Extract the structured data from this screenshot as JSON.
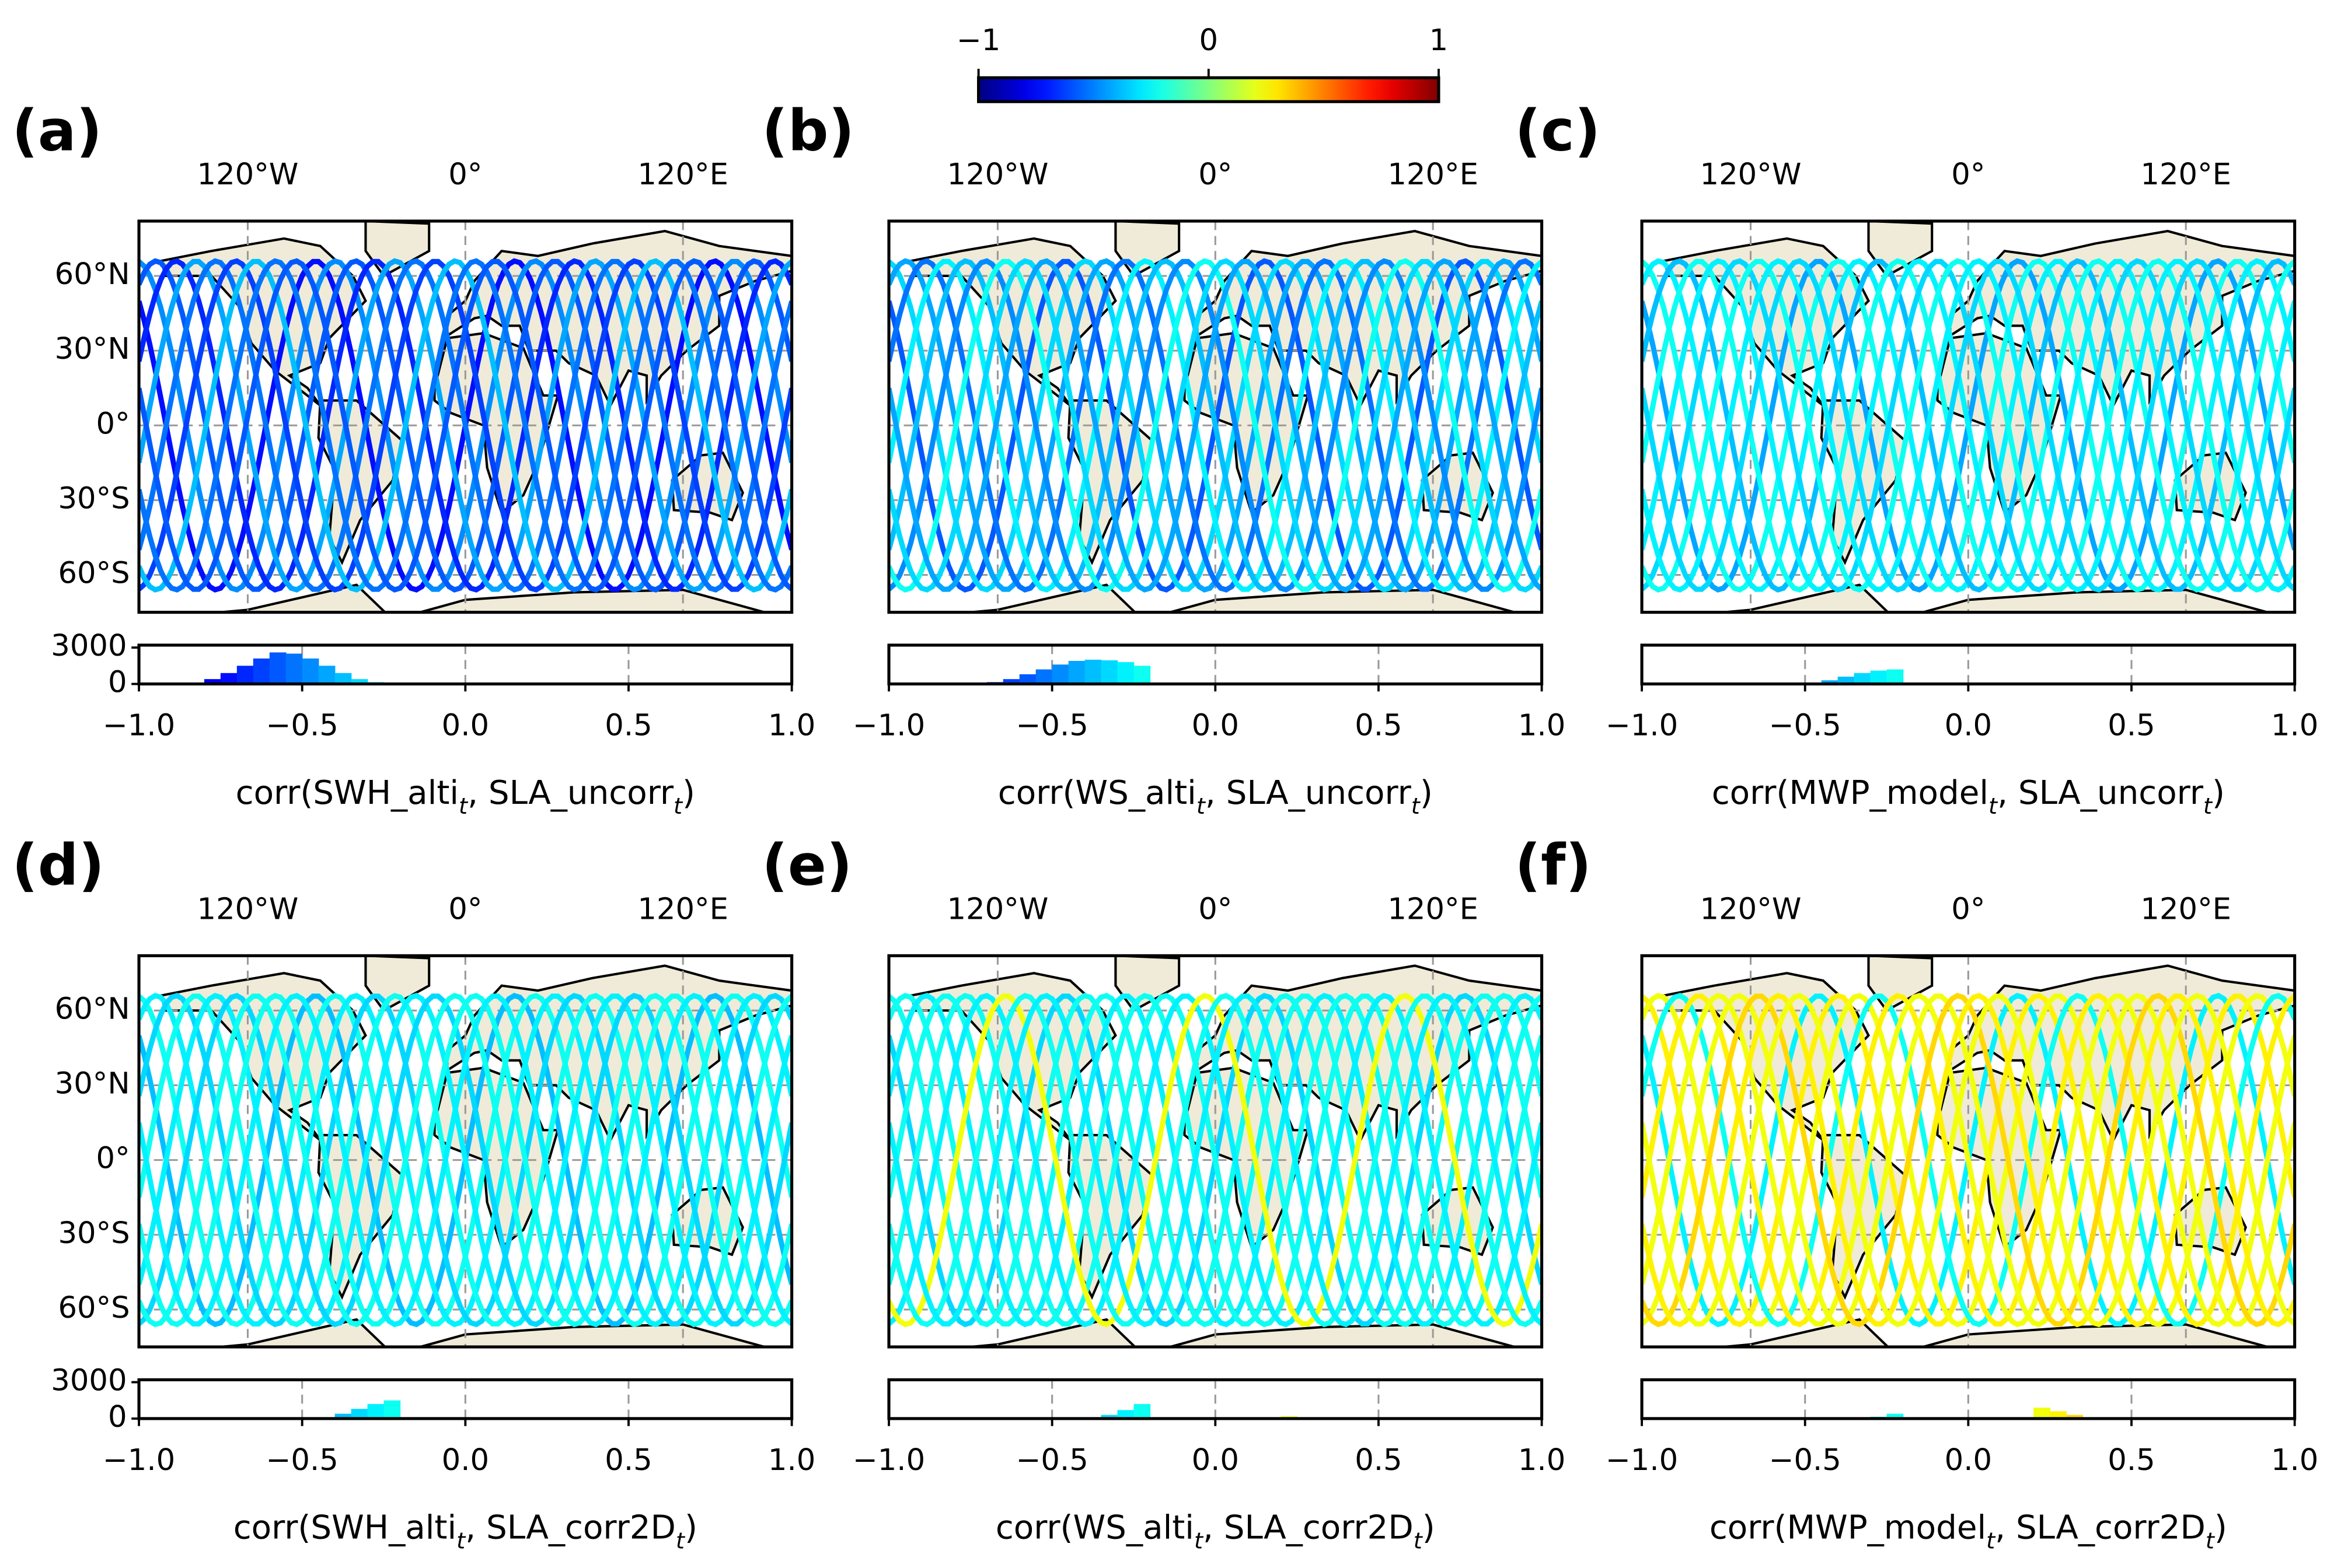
{
  "colorbar": {
    "lim": [
      -1,
      1
    ],
    "ticks": [
      {
        "value": -1,
        "label": "−1"
      },
      0,
      1
    ]
  },
  "chart_data": [
    {
      "type": "histogram",
      "label": "(a)",
      "map": {
        "xlim": [
          -180,
          180
        ],
        "ylim": [
          -75,
          82
        ],
        "xticks": [
          {
            "value": -120,
            "label": "120°W"
          },
          {
            "value": 0,
            "label": "0°"
          },
          {
            "value": 120,
            "label": "120°E"
          }
        ],
        "yticks": [
          {
            "value": 60,
            "label": "60°N"
          },
          {
            "value": 30,
            "label": "30°N"
          },
          {
            "value": 0,
            "label": "0°"
          },
          {
            "value": -30,
            "label": "30°S"
          },
          {
            "value": -60,
            "label": "60°S"
          }
        ]
      },
      "xlim": [
        -1,
        1
      ],
      "ylim": [
        0,
        3200
      ],
      "xticks": [
        {
          "value": -1,
          "label": "−1.0"
        },
        {
          "value": -0.5,
          "label": "−0.5"
        },
        {
          "value": 0,
          "label": "0.0"
        },
        {
          "value": 0.5,
          "label": "0.5"
        },
        {
          "value": 1,
          "label": "1.0"
        }
      ],
      "yticks": [
        3000,
        0
      ],
      "bins": [
        -1,
        -0.95,
        -0.9,
        -0.85,
        -0.8,
        -0.75,
        -0.7,
        -0.65,
        -0.6,
        -0.55,
        -0.5,
        -0.45,
        -0.4,
        -0.35,
        -0.3,
        -0.25,
        -0.2,
        -0.15,
        -0.1,
        -0.05,
        0,
        0.05,
        0.1,
        0.15,
        0.2,
        0.25,
        0.3,
        0.35,
        0.4,
        0.45,
        0.5,
        0.55,
        0.6,
        0.65,
        0.7,
        0.75,
        0.8,
        0.85,
        0.9,
        0.95,
        1
      ],
      "counts": [
        0,
        0,
        0,
        100,
        400,
        900,
        1500,
        2100,
        2600,
        2500,
        2100,
        1500,
        900,
        400,
        150,
        50,
        0,
        0,
        0,
        0,
        0,
        0,
        0,
        0,
        0,
        0,
        0,
        0,
        0,
        0,
        0,
        0,
        0,
        0,
        0,
        0,
        0,
        0,
        0,
        0
      ],
      "xlabel": [
        "corr(SWH_alti",
        "t",
        ", SLA_uncorr",
        "t",
        ")"
      ]
    },
    {
      "type": "histogram",
      "label": "(b)",
      "map": {
        "xlim": [
          -180,
          180
        ],
        "ylim": [
          -75,
          82
        ],
        "xticks": [
          {
            "value": -120,
            "label": "120°W"
          },
          {
            "value": 0,
            "label": "0°"
          },
          {
            "value": 120,
            "label": "120°E"
          }
        ],
        "yticks": [
          60,
          30,
          0,
          -30,
          -60
        ]
      },
      "xlim": [
        -1,
        1
      ],
      "ylim": [
        0,
        3200
      ],
      "xticks": [
        {
          "value": -1,
          "label": "−1.0"
        },
        {
          "value": -0.5,
          "label": "−0.5"
        },
        {
          "value": 0,
          "label": "0.0"
        },
        {
          "value": 0.5,
          "label": "0.5"
        },
        {
          "value": 1,
          "label": "1.0"
        }
      ],
      "yticks": [],
      "bins": [
        -1,
        -0.95,
        -0.9,
        -0.85,
        -0.8,
        -0.75,
        -0.7,
        -0.65,
        -0.6,
        -0.55,
        -0.5,
        -0.45,
        -0.4,
        -0.35,
        -0.3,
        -0.25,
        -0.2,
        -0.15,
        -0.1,
        -0.05,
        0,
        0.05,
        0.1,
        0.15,
        0.2,
        0.25,
        0.3,
        0.35,
        0.4,
        0.45,
        0.5,
        0.55,
        0.6,
        0.65,
        0.7,
        0.75,
        0.8,
        0.85,
        0.9,
        0.95,
        1
      ],
      "counts": [
        0,
        0,
        0,
        0,
        0,
        50,
        150,
        400,
        800,
        1200,
        1600,
        1900,
        2000,
        1950,
        1800,
        1500,
        0,
        0,
        0,
        0,
        0,
        0,
        0,
        0,
        0,
        0,
        0,
        0,
        0,
        0,
        0,
        0,
        0,
        0,
        0,
        0,
        0,
        0,
        0,
        0
      ],
      "xlabel": [
        "corr(WS_alti",
        "t",
        ", SLA_uncorr",
        "t",
        ")"
      ]
    },
    {
      "type": "histogram",
      "label": "(c)",
      "map": {
        "xlim": [
          -180,
          180
        ],
        "ylim": [
          -75,
          82
        ],
        "xticks": [
          {
            "value": -120,
            "label": "120°W"
          },
          {
            "value": 0,
            "label": "0°"
          },
          {
            "value": 120,
            "label": "120°E"
          }
        ],
        "yticks": [
          60,
          30,
          0,
          -30,
          -60
        ]
      },
      "xlim": [
        -1,
        1
      ],
      "ylim": [
        0,
        3200
      ],
      "xticks": [
        {
          "value": -1,
          "label": "−1.0"
        },
        {
          "value": -0.5,
          "label": "−0.5"
        },
        {
          "value": 0,
          "label": "0.0"
        },
        {
          "value": 0.5,
          "label": "0.5"
        },
        {
          "value": 1,
          "label": "1.0"
        }
      ],
      "yticks": [],
      "bins": [
        -1,
        -0.95,
        -0.9,
        -0.85,
        -0.8,
        -0.75,
        -0.7,
        -0.65,
        -0.6,
        -0.55,
        -0.5,
        -0.45,
        -0.4,
        -0.35,
        -0.3,
        -0.25,
        -0.2,
        -0.15,
        -0.1,
        -0.05,
        0,
        0.05,
        0.1,
        0.15,
        0.2,
        0.25,
        0.3,
        0.35,
        0.4,
        0.45,
        0.5,
        0.55,
        0.6,
        0.65,
        0.7,
        0.75,
        0.8,
        0.85,
        0.9,
        0.95,
        1
      ],
      "counts": [
        0,
        0,
        0,
        0,
        0,
        0,
        0,
        0,
        0,
        0,
        100,
        300,
        600,
        900,
        1100,
        1200,
        0,
        0,
        0,
        0,
        0,
        0,
        0,
        0,
        100,
        80,
        0,
        0,
        0,
        0,
        0,
        0,
        0,
        0,
        0,
        0,
        0,
        0,
        0,
        0
      ],
      "xlabel": [
        "corr(MWP_model",
        "t",
        ", SLA_uncorr",
        "t",
        ")"
      ]
    },
    {
      "type": "histogram",
      "label": "(d)",
      "map": {
        "xlim": [
          -180,
          180
        ],
        "ylim": [
          -75,
          82
        ],
        "xticks": [
          {
            "value": -120,
            "label": "120°W"
          },
          {
            "value": 0,
            "label": "0°"
          },
          {
            "value": 120,
            "label": "120°E"
          }
        ],
        "yticks": [
          {
            "value": 60,
            "label": "60°N"
          },
          {
            "value": 30,
            "label": "30°N"
          },
          {
            "value": 0,
            "label": "0°"
          },
          {
            "value": -30,
            "label": "30°S"
          },
          {
            "value": -60,
            "label": "60°S"
          }
        ]
      },
      "xlim": [
        -1,
        1
      ],
      "ylim": [
        0,
        3200
      ],
      "xticks": [
        {
          "value": -1,
          "label": "−1.0"
        },
        {
          "value": -0.5,
          "label": "−0.5"
        },
        {
          "value": 0,
          "label": "0.0"
        },
        {
          "value": 0.5,
          "label": "0.5"
        },
        {
          "value": 1,
          "label": "1.0"
        }
      ],
      "yticks": [
        3000,
        0
      ],
      "bins": [
        -1,
        -0.95,
        -0.9,
        -0.85,
        -0.8,
        -0.75,
        -0.7,
        -0.65,
        -0.6,
        -0.55,
        -0.5,
        -0.45,
        -0.4,
        -0.35,
        -0.3,
        -0.25,
        -0.2,
        -0.15,
        -0.1,
        -0.05,
        0,
        0.05,
        0.1,
        0.15,
        0.2,
        0.25,
        0.3,
        0.35,
        0.4,
        0.45,
        0.5,
        0.55,
        0.6,
        0.65,
        0.7,
        0.75,
        0.8,
        0.85,
        0.9,
        0.95,
        1
      ],
      "counts": [
        0,
        0,
        0,
        0,
        0,
        0,
        0,
        0,
        0,
        0,
        0,
        100,
        400,
        800,
        1200,
        1500,
        0,
        0,
        0,
        0,
        0,
        0,
        0,
        0,
        60,
        0,
        0,
        0,
        0,
        0,
        0,
        0,
        0,
        0,
        0,
        0,
        0,
        0,
        0,
        0
      ],
      "xlabel": [
        "corr(SWH_alti",
        "t",
        ", SLA_corr2D",
        "t",
        ")"
      ]
    },
    {
      "type": "histogram",
      "label": "(e)",
      "map": {
        "xlim": [
          -180,
          180
        ],
        "ylim": [
          -75,
          82
        ],
        "xticks": [
          {
            "value": -120,
            "label": "120°W"
          },
          {
            "value": 0,
            "label": "0°"
          },
          {
            "value": 120,
            "label": "120°E"
          }
        ],
        "yticks": [
          60,
          30,
          0,
          -30,
          -60
        ]
      },
      "xlim": [
        -1,
        1
      ],
      "ylim": [
        0,
        3200
      ],
      "xticks": [
        {
          "value": -1,
          "label": "−1.0"
        },
        {
          "value": -0.5,
          "label": "−0.5"
        },
        {
          "value": 0,
          "label": "0.0"
        },
        {
          "value": 0.5,
          "label": "0.5"
        },
        {
          "value": 1,
          "label": "1.0"
        }
      ],
      "yticks": [],
      "bins": [
        -1,
        -0.95,
        -0.9,
        -0.85,
        -0.8,
        -0.75,
        -0.7,
        -0.65,
        -0.6,
        -0.55,
        -0.5,
        -0.45,
        -0.4,
        -0.35,
        -0.3,
        -0.25,
        -0.2,
        -0.15,
        -0.1,
        -0.05,
        0,
        0.05,
        0.1,
        0.15,
        0.2,
        0.25,
        0.3,
        0.35,
        0.4,
        0.45,
        0.5,
        0.55,
        0.6,
        0.65,
        0.7,
        0.75,
        0.8,
        0.85,
        0.9,
        0.95,
        1
      ],
      "counts": [
        0,
        0,
        0,
        0,
        0,
        0,
        0,
        0,
        0,
        0,
        0,
        0,
        0,
        300,
        700,
        1200,
        0,
        0,
        0,
        0,
        0,
        0,
        0,
        0,
        200,
        100,
        0,
        0,
        0,
        0,
        0,
        0,
        0,
        0,
        0,
        0,
        0,
        0,
        0,
        0
      ],
      "xlabel": [
        "corr(WS_alti",
        "t",
        ", SLA_corr2D",
        "t",
        ")"
      ]
    },
    {
      "type": "histogram",
      "label": "(f)",
      "map": {
        "xlim": [
          -180,
          180
        ],
        "ylim": [
          -75,
          82
        ],
        "xticks": [
          {
            "value": -120,
            "label": "120°W"
          },
          {
            "value": 0,
            "label": "0°"
          },
          {
            "value": 120,
            "label": "120°E"
          }
        ],
        "yticks": [
          60,
          30,
          0,
          -30,
          -60
        ]
      },
      "xlim": [
        -1,
        1
      ],
      "ylim": [
        0,
        3200
      ],
      "xticks": [
        {
          "value": -1,
          "label": "−1.0"
        },
        {
          "value": -0.5,
          "label": "−0.5"
        },
        {
          "value": 0,
          "label": "0.0"
        },
        {
          "value": 0.5,
          "label": "0.5"
        },
        {
          "value": 1,
          "label": "1.0"
        }
      ],
      "yticks": [],
      "bins": [
        -1,
        -0.95,
        -0.9,
        -0.85,
        -0.8,
        -0.75,
        -0.7,
        -0.65,
        -0.6,
        -0.55,
        -0.5,
        -0.45,
        -0.4,
        -0.35,
        -0.3,
        -0.25,
        -0.2,
        -0.15,
        -0.1,
        -0.05,
        0,
        0.05,
        0.1,
        0.15,
        0.2,
        0.25,
        0.3,
        0.35,
        0.4,
        0.45,
        0.5,
        0.55,
        0.6,
        0.65,
        0.7,
        0.75,
        0.8,
        0.85,
        0.9,
        0.95,
        1
      ],
      "counts": [
        0,
        0,
        0,
        0,
        0,
        0,
        0,
        0,
        0,
        0,
        0,
        0,
        0,
        0,
        150,
        400,
        0,
        0,
        0,
        0,
        0,
        0,
        0,
        0,
        900,
        600,
        300,
        0,
        0,
        0,
        0,
        0,
        0,
        0,
        0,
        0,
        0,
        0,
        0,
        0
      ],
      "xlabel": [
        "corr(MWP_model",
        "t",
        ", SLA_corr2D",
        "t",
        ")"
      ]
    }
  ]
}
